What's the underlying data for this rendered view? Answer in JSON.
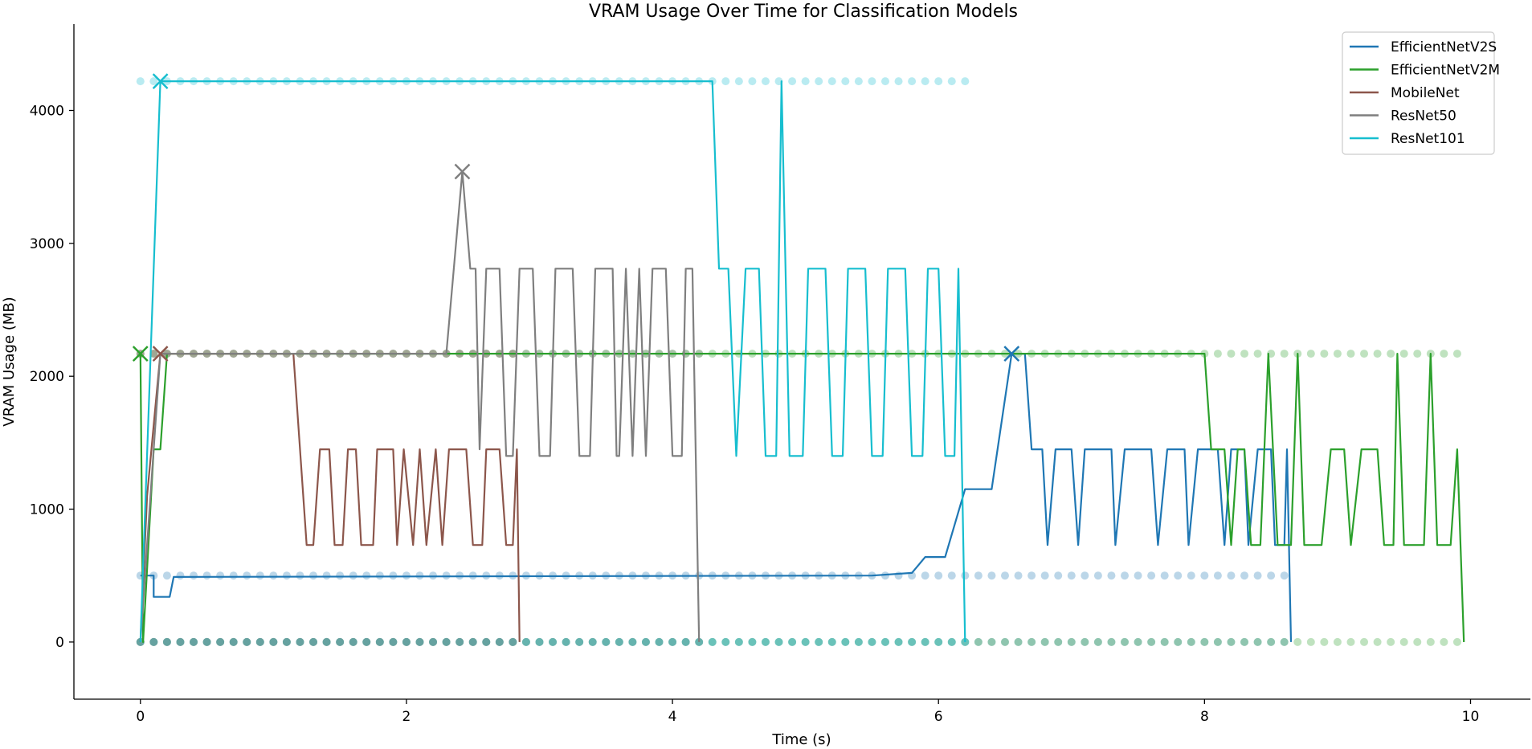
{
  "chart_data": {
    "type": "line",
    "title": "VRAM Usage Over Time for Classification Models",
    "xlabel": "Time (s)",
    "ylabel": "VRAM Usage (MB)",
    "xlim": [
      -0.5,
      10.45
    ],
    "ylim": [
      -430,
      4650
    ],
    "x_ticks": [
      0,
      2,
      4,
      6,
      8,
      10
    ],
    "y_ticks": [
      0,
      1000,
      2000,
      3000,
      4000
    ],
    "grid": false,
    "legend_position": "top-right",
    "markers": "scatter points with alpha show raw samples; x marks the peak of each series",
    "series": [
      {
        "name": "EfficientNetV2S",
        "color": "#1f77b4",
        "line": [
          [
            0,
            500
          ],
          [
            0.1,
            500
          ],
          [
            0.1,
            340
          ],
          [
            0.22,
            340
          ],
          [
            0.25,
            490
          ],
          [
            5.5,
            500
          ],
          [
            5.8,
            520
          ],
          [
            5.9,
            640
          ],
          [
            6.05,
            640
          ],
          [
            6.2,
            1150
          ],
          [
            6.4,
            1150
          ],
          [
            6.55,
            2170
          ],
          [
            6.65,
            2170
          ],
          [
            6.7,
            1450
          ],
          [
            6.78,
            1450
          ],
          [
            6.82,
            730
          ],
          [
            6.88,
            1450
          ],
          [
            7.0,
            1450
          ],
          [
            7.05,
            730
          ],
          [
            7.1,
            1450
          ],
          [
            7.3,
            1450
          ],
          [
            7.33,
            730
          ],
          [
            7.4,
            1450
          ],
          [
            7.6,
            1450
          ],
          [
            7.65,
            730
          ],
          [
            7.72,
            1450
          ],
          [
            7.85,
            1450
          ],
          [
            7.88,
            730
          ],
          [
            7.95,
            1450
          ],
          [
            8.1,
            1450
          ],
          [
            8.15,
            730
          ],
          [
            8.2,
            1450
          ],
          [
            8.3,
            1450
          ],
          [
            8.33,
            730
          ],
          [
            8.4,
            1450
          ],
          [
            8.5,
            1450
          ],
          [
            8.53,
            730
          ],
          [
            8.6,
            730
          ],
          [
            8.62,
            1450
          ],
          [
            8.65,
            0
          ]
        ],
        "scatter_y": [
          500,
          0
        ],
        "peak": [
          6.55,
          2170
        ]
      },
      {
        "name": "EfficientNetV2M",
        "color": "#2ca02c",
        "line": [
          [
            0,
            2170
          ],
          [
            0.02,
            0
          ],
          [
            0.1,
            1450
          ],
          [
            0.15,
            1450
          ],
          [
            0.2,
            2170
          ],
          [
            8.0,
            2170
          ],
          [
            8.05,
            1450
          ],
          [
            8.15,
            1450
          ],
          [
            8.2,
            730
          ],
          [
            8.25,
            1450
          ],
          [
            8.3,
            1450
          ],
          [
            8.35,
            730
          ],
          [
            8.42,
            730
          ],
          [
            8.48,
            2170
          ],
          [
            8.55,
            730
          ],
          [
            8.65,
            730
          ],
          [
            8.7,
            2170
          ],
          [
            8.75,
            730
          ],
          [
            8.88,
            730
          ],
          [
            8.95,
            1450
          ],
          [
            9.05,
            1450
          ],
          [
            9.1,
            730
          ],
          [
            9.18,
            1450
          ],
          [
            9.3,
            1450
          ],
          [
            9.35,
            730
          ],
          [
            9.42,
            730
          ],
          [
            9.45,
            2170
          ],
          [
            9.5,
            730
          ],
          [
            9.65,
            730
          ],
          [
            9.7,
            2170
          ],
          [
            9.75,
            730
          ],
          [
            9.85,
            730
          ],
          [
            9.9,
            1450
          ],
          [
            9.95,
            0
          ]
        ],
        "scatter_y": [
          2170,
          0
        ],
        "peak": [
          0,
          2170
        ]
      },
      {
        "name": "MobileNet",
        "color": "#8c564b",
        "line": [
          [
            0,
            0
          ],
          [
            0.05,
            1100
          ],
          [
            0.15,
            2170
          ],
          [
            1.15,
            2170
          ],
          [
            1.25,
            730
          ],
          [
            1.3,
            730
          ],
          [
            1.35,
            1450
          ],
          [
            1.42,
            1450
          ],
          [
            1.46,
            730
          ],
          [
            1.52,
            730
          ],
          [
            1.56,
            1450
          ],
          [
            1.62,
            1450
          ],
          [
            1.66,
            730
          ],
          [
            1.75,
            730
          ],
          [
            1.78,
            1450
          ],
          [
            1.9,
            1450
          ],
          [
            1.93,
            730
          ],
          [
            1.98,
            1450
          ],
          [
            2.05,
            730
          ],
          [
            2.1,
            1450
          ],
          [
            2.15,
            730
          ],
          [
            2.22,
            1450
          ],
          [
            2.27,
            730
          ],
          [
            2.32,
            1450
          ],
          [
            2.45,
            1450
          ],
          [
            2.5,
            730
          ],
          [
            2.57,
            730
          ],
          [
            2.6,
            1450
          ],
          [
            2.7,
            1450
          ],
          [
            2.75,
            730
          ],
          [
            2.8,
            730
          ],
          [
            2.83,
            1450
          ],
          [
            2.85,
            0
          ]
        ],
        "scatter_y": [
          2170,
          0
        ],
        "peak": [
          0.15,
          2170
        ]
      },
      {
        "name": "ResNet50",
        "color": "#7f7f7f",
        "line": [
          [
            0,
            0
          ],
          [
            0.1,
            1450
          ],
          [
            0.15,
            2170
          ],
          [
            2.3,
            2170
          ],
          [
            2.42,
            3540
          ],
          [
            2.48,
            2810
          ],
          [
            2.52,
            2810
          ],
          [
            2.55,
            1450
          ],
          [
            2.6,
            2810
          ],
          [
            2.7,
            2810
          ],
          [
            2.75,
            1400
          ],
          [
            2.8,
            1400
          ],
          [
            2.85,
            2810
          ],
          [
            2.95,
            2810
          ],
          [
            3.0,
            1400
          ],
          [
            3.08,
            1400
          ],
          [
            3.12,
            2810
          ],
          [
            3.25,
            2810
          ],
          [
            3.3,
            1400
          ],
          [
            3.38,
            1400
          ],
          [
            3.42,
            2810
          ],
          [
            3.55,
            2810
          ],
          [
            3.58,
            1400
          ],
          [
            3.6,
            1400
          ],
          [
            3.65,
            2810
          ],
          [
            3.7,
            1400
          ],
          [
            3.75,
            2810
          ],
          [
            3.8,
            1400
          ],
          [
            3.85,
            2810
          ],
          [
            3.95,
            2810
          ],
          [
            4.0,
            1400
          ],
          [
            4.07,
            1400
          ],
          [
            4.1,
            2810
          ],
          [
            4.15,
            2810
          ],
          [
            4.2,
            0
          ]
        ],
        "scatter_y": [
          2170,
          0
        ],
        "peak": [
          2.42,
          3540
        ]
      },
      {
        "name": "ResNet101",
        "color": "#17becf",
        "line": [
          [
            0,
            0
          ],
          [
            0.1,
            2810
          ],
          [
            0.15,
            4220
          ],
          [
            4.3,
            4220
          ],
          [
            4.35,
            2810
          ],
          [
            4.42,
            2810
          ],
          [
            4.48,
            1400
          ],
          [
            4.55,
            2810
          ],
          [
            4.65,
            2810
          ],
          [
            4.7,
            1400
          ],
          [
            4.78,
            1400
          ],
          [
            4.82,
            4220
          ],
          [
            4.88,
            1400
          ],
          [
            4.98,
            1400
          ],
          [
            5.02,
            2810
          ],
          [
            5.15,
            2810
          ],
          [
            5.2,
            1400
          ],
          [
            5.28,
            1400
          ],
          [
            5.32,
            2810
          ],
          [
            5.45,
            2810
          ],
          [
            5.5,
            1400
          ],
          [
            5.58,
            1400
          ],
          [
            5.62,
            2810
          ],
          [
            5.75,
            2810
          ],
          [
            5.8,
            1400
          ],
          [
            5.88,
            1400
          ],
          [
            5.92,
            2810
          ],
          [
            6.0,
            2810
          ],
          [
            6.05,
            1400
          ],
          [
            6.12,
            1400
          ],
          [
            6.15,
            2810
          ],
          [
            6.2,
            0
          ]
        ],
        "scatter_y": [
          4220,
          0
        ],
        "peak": [
          0.15,
          4220
        ]
      }
    ]
  }
}
